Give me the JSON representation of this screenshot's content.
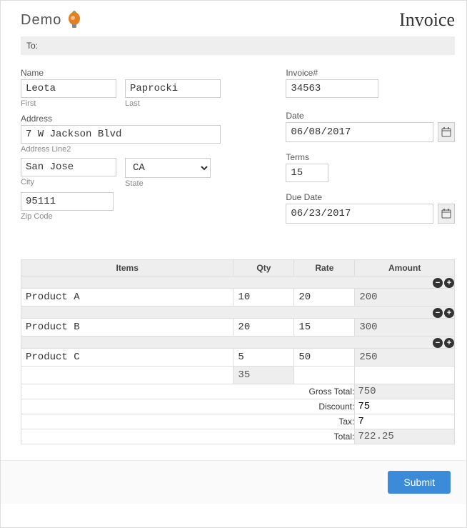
{
  "logo_text": "Demo",
  "title": "Invoice",
  "to_label": "To:",
  "name": {
    "label": "Name",
    "first": "Leota",
    "first_sub": "First",
    "last": "Paprocki",
    "last_sub": "Last"
  },
  "address": {
    "label": "Address",
    "line1": "7 W Jackson Blvd",
    "line2_sub": "Address Line2",
    "city": "San Jose",
    "city_sub": "City",
    "state": "CA",
    "state_sub": "State",
    "zip": "95111",
    "zip_sub": "Zip Code"
  },
  "invoice": {
    "number_label": "Invoice#",
    "number": "34563",
    "date_label": "Date",
    "date": "06/08/2017",
    "terms_label": "Terms",
    "terms": "15",
    "due_label": "Due Date",
    "due": "06/23/2017"
  },
  "table": {
    "headers": {
      "items": "Items",
      "qty": "Qty",
      "rate": "Rate",
      "amount": "Amount"
    },
    "rows": [
      {
        "item": "Product A",
        "qty": "10",
        "rate": "20",
        "amount": "200"
      },
      {
        "item": "Product B",
        "qty": "20",
        "rate": "15",
        "amount": "300"
      },
      {
        "item": "Product C",
        "qty": "5",
        "rate": "50",
        "amount": "250"
      }
    ],
    "qty_total": "35"
  },
  "totals": {
    "gross_label": "Gross Total:",
    "gross": "750",
    "discount_label": "Discount:",
    "discount": "75",
    "tax_label": "Tax:",
    "tax": "7",
    "total_label": "Total:",
    "total": "722.25"
  },
  "submit_label": "Submit",
  "colors": {
    "button_bg": "#3b8bd8",
    "panel_bg": "#eeeeee",
    "border": "#dddddd"
  }
}
